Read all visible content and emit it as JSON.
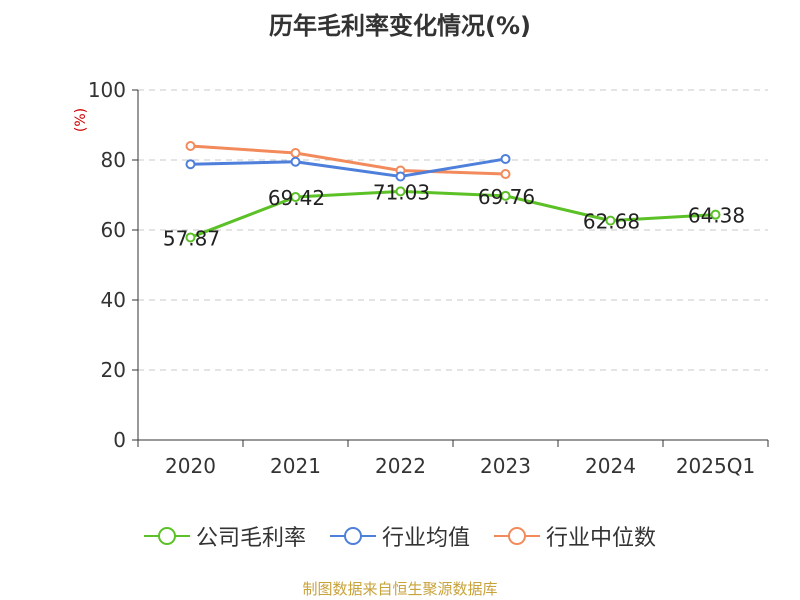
{
  "chart_data": {
    "type": "line",
    "title": "历年毛利率变化情况(%)",
    "ylabel": "(%)",
    "xlabel": "",
    "categories": [
      "2020",
      "2021",
      "2022",
      "2023",
      "2024",
      "2025Q1"
    ],
    "ylim": [
      0,
      100
    ],
    "yticks": [
      0,
      20,
      40,
      60,
      80,
      100
    ],
    "grid": true,
    "legend_position": "bottom",
    "series": [
      {
        "name": "公司毛利率",
        "color": "#5bc126",
        "values": [
          57.87,
          69.42,
          71.03,
          69.76,
          62.68,
          64.38
        ],
        "labels": [
          "57.87",
          "69.42",
          "71.03",
          "69.76",
          "62.68",
          "64.38"
        ]
      },
      {
        "name": "行业均值",
        "color": "#4e7fdb",
        "values": [
          78.8,
          79.5,
          75.3,
          80.3,
          null,
          null
        ]
      },
      {
        "name": "行业中位数",
        "color": "#f28a5c",
        "values": [
          84.0,
          82.0,
          77.0,
          76.0,
          null,
          null
        ]
      }
    ]
  },
  "footer": {
    "source": "制图数据来自恒生聚源数据库"
  }
}
